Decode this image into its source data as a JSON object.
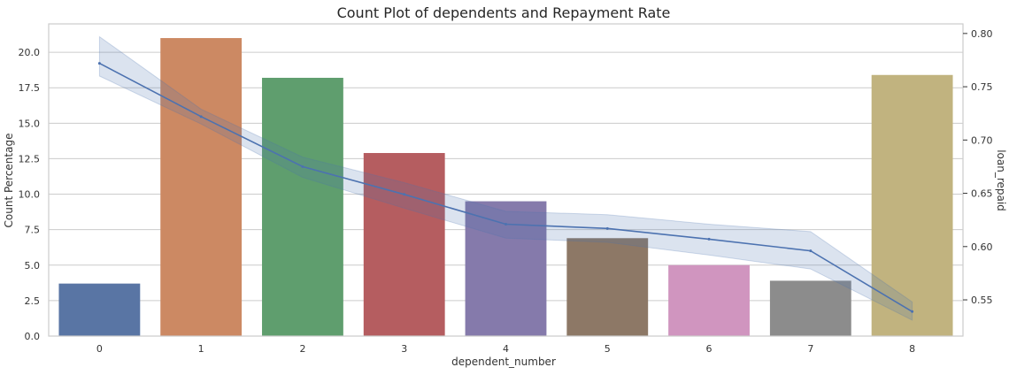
{
  "chart_data": {
    "type": "bar",
    "title": "Count Plot of dependents and Repayment Rate",
    "xlabel": "dependent_number",
    "ylabel": "Count Percentage",
    "y2label": "loan_repaid",
    "categories": [
      "0",
      "1",
      "2",
      "3",
      "4",
      "5",
      "6",
      "7",
      "8"
    ],
    "bar_series": {
      "values": [
        3.7,
        21.0,
        18.2,
        12.9,
        9.5,
        6.9,
        5.0,
        3.9,
        18.4
      ],
      "colors": [
        "#5975a4",
        "#cc8963",
        "#5f9e6e",
        "#b55d60",
        "#857aab",
        "#8d7866",
        "#d095bf",
        "#8c8c8c",
        "#c1b37f"
      ]
    },
    "line_series": {
      "values": [
        0.772,
        0.722,
        0.675,
        0.649,
        0.621,
        0.617,
        0.607,
        0.596,
        0.539
      ],
      "ci_lower": [
        0.76,
        0.715,
        0.665,
        0.636,
        0.608,
        0.604,
        0.592,
        0.579,
        0.531
      ],
      "ci_upper": [
        0.797,
        0.729,
        0.684,
        0.66,
        0.633,
        0.63,
        0.621,
        0.614,
        0.548
      ],
      "color": "#4c72b0"
    },
    "ylim": [
      0,
      22
    ],
    "y2lim": [
      0.516,
      0.809
    ],
    "yticks": [
      "0.0",
      "2.5",
      "5.0",
      "7.5",
      "10.0",
      "12.5",
      "15.0",
      "17.5",
      "20.0"
    ],
    "y2ticks": [
      "0.55",
      "0.60",
      "0.65",
      "0.70",
      "0.75",
      "0.80"
    ],
    "grid": true
  }
}
